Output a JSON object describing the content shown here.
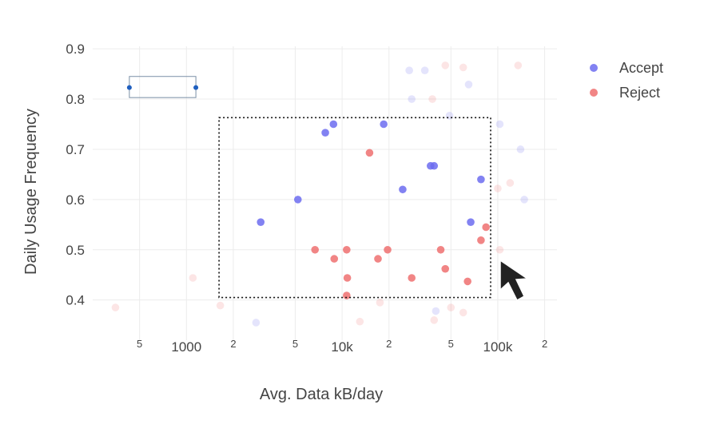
{
  "chart_data": {
    "type": "scatter",
    "xlabel": "Avg. Data kB/day",
    "ylabel": "Daily Usage Frequency",
    "xscale": "log",
    "xlim": [
      250,
      240000
    ],
    "ylim": [
      0.32,
      0.905
    ],
    "grid": true,
    "legend_position": "top-right",
    "x_tick_labels": [
      {
        "value": 500,
        "label": "5",
        "minor": true
      },
      {
        "value": 1000,
        "label": "1000",
        "minor": false
      },
      {
        "value": 2000,
        "label": "2",
        "minor": true
      },
      {
        "value": 5000,
        "label": "5",
        "minor": true
      },
      {
        "value": 10000,
        "label": "10k",
        "minor": false
      },
      {
        "value": 20000,
        "label": "2",
        "minor": true
      },
      {
        "value": 50000,
        "label": "5",
        "minor": true
      },
      {
        "value": 100000,
        "label": "100k",
        "minor": false
      },
      {
        "value": 200000,
        "label": "2",
        "minor": true
      }
    ],
    "y_tick_labels": [
      {
        "value": 0.4,
        "label": "0.4"
      },
      {
        "value": 0.5,
        "label": "0.5"
      },
      {
        "value": 0.6,
        "label": "0.6"
      },
      {
        "value": 0.7,
        "label": "0.7"
      },
      {
        "value": 0.8,
        "label": "0.8"
      },
      {
        "value": 0.9,
        "label": "0.9"
      }
    ],
    "series": [
      {
        "name": "Accept",
        "color": "#6c6cf0",
        "points": [
          {
            "x": 3000,
            "y": 0.555
          },
          {
            "x": 5200,
            "y": 0.6
          },
          {
            "x": 7800,
            "y": 0.733
          },
          {
            "x": 8800,
            "y": 0.75
          },
          {
            "x": 18500,
            "y": 0.75
          },
          {
            "x": 24500,
            "y": 0.62
          },
          {
            "x": 37000,
            "y": 0.667
          },
          {
            "x": 39000,
            "y": 0.667
          },
          {
            "x": 67000,
            "y": 0.555
          },
          {
            "x": 78000,
            "y": 0.64
          },
          {
            "x": 2800,
            "y": 0.355,
            "faded": true
          },
          {
            "x": 27000,
            "y": 0.857,
            "faded": true
          },
          {
            "x": 34000,
            "y": 0.857,
            "faded": true
          },
          {
            "x": 28000,
            "y": 0.8,
            "faded": true
          },
          {
            "x": 49000,
            "y": 0.767,
            "faded": true
          },
          {
            "x": 65000,
            "y": 0.829,
            "faded": true
          },
          {
            "x": 103000,
            "y": 0.75,
            "faded": true
          },
          {
            "x": 140000,
            "y": 0.7,
            "faded": true
          },
          {
            "x": 148000,
            "y": 0.6,
            "faded": true
          },
          {
            "x": 40000,
            "y": 0.378,
            "faded": true
          }
        ]
      },
      {
        "name": "Reject",
        "color": "#ef7070",
        "points": [
          {
            "x": 15000,
            "y": 0.693
          },
          {
            "x": 6700,
            "y": 0.5
          },
          {
            "x": 8900,
            "y": 0.482
          },
          {
            "x": 10700,
            "y": 0.5
          },
          {
            "x": 10800,
            "y": 0.444
          },
          {
            "x": 10700,
            "y": 0.409
          },
          {
            "x": 17000,
            "y": 0.482
          },
          {
            "x": 19600,
            "y": 0.5
          },
          {
            "x": 28000,
            "y": 0.444
          },
          {
            "x": 43000,
            "y": 0.5
          },
          {
            "x": 46000,
            "y": 0.462
          },
          {
            "x": 64000,
            "y": 0.437
          },
          {
            "x": 78000,
            "y": 0.519
          },
          {
            "x": 84000,
            "y": 0.545
          },
          {
            "x": 350,
            "y": 0.385,
            "faded": true
          },
          {
            "x": 1100,
            "y": 0.444,
            "faded": true
          },
          {
            "x": 1650,
            "y": 0.389,
            "faded": true
          },
          {
            "x": 13000,
            "y": 0.357,
            "faded": true
          },
          {
            "x": 17500,
            "y": 0.395,
            "faded": true
          },
          {
            "x": 38000,
            "y": 0.8,
            "faded": true
          },
          {
            "x": 46000,
            "y": 0.867,
            "faded": true
          },
          {
            "x": 50000,
            "y": 0.385,
            "faded": true
          },
          {
            "x": 60000,
            "y": 0.863,
            "faded": true
          },
          {
            "x": 60000,
            "y": 0.375,
            "faded": true
          },
          {
            "x": 100000,
            "y": 0.622,
            "faded": true
          },
          {
            "x": 103000,
            "y": 0.5,
            "faded": true
          },
          {
            "x": 120000,
            "y": 0.633,
            "faded": true
          },
          {
            "x": 135000,
            "y": 0.867,
            "faded": true
          },
          {
            "x": 39000,
            "y": 0.36,
            "faded": true
          }
        ]
      }
    ],
    "selection_box": {
      "x0": 1620,
      "x1": 90000,
      "y0": 0.405,
      "y1": 0.763
    },
    "range_box": {
      "x0": 430,
      "x1": 1150,
      "y0": 0.803,
      "y1": 0.845
    }
  },
  "ui": {
    "cursor": "arrow-cursor",
    "selection_style": "dotted-lasso-box"
  }
}
